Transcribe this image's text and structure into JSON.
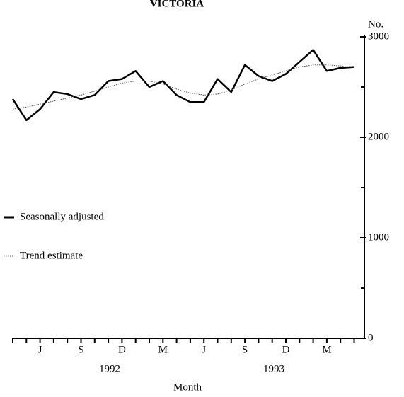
{
  "chart_data": {
    "type": "line",
    "title": "VICTORIA",
    "ylabel": "No.",
    "xlabel": "Month",
    "categories": [
      null,
      null,
      "J",
      null,
      null,
      "S",
      null,
      null,
      "D",
      null,
      null,
      "M",
      null,
      null,
      "J",
      null,
      null,
      "S",
      null,
      null,
      "D",
      null,
      null,
      "M",
      null,
      null
    ],
    "x_groups": [
      "1992",
      "1993"
    ],
    "series": [
      {
        "name": "Seasonally adjusted",
        "color": "#000",
        "values": [
          2380,
          2170,
          2280,
          2450,
          2430,
          2380,
          2420,
          2560,
          2580,
          2660,
          2500,
          2560,
          2420,
          2350,
          2350,
          2580,
          2450,
          2720,
          2610,
          2560,
          2630,
          2750,
          2870,
          2660,
          2690,
          2700
        ]
      },
      {
        "name": "Trend estimate",
        "color": "#555",
        "values": [
          2280,
          2300,
          2330,
          2360,
          2390,
          2420,
          2460,
          2500,
          2540,
          2560,
          2560,
          2530,
          2480,
          2440,
          2420,
          2430,
          2470,
          2530,
          2580,
          2620,
          2660,
          2700,
          2720,
          2720,
          2710,
          2700
        ]
      }
    ],
    "ylim": [
      0,
      3000
    ],
    "yticks": [
      0,
      1000,
      2000,
      3000
    ]
  }
}
